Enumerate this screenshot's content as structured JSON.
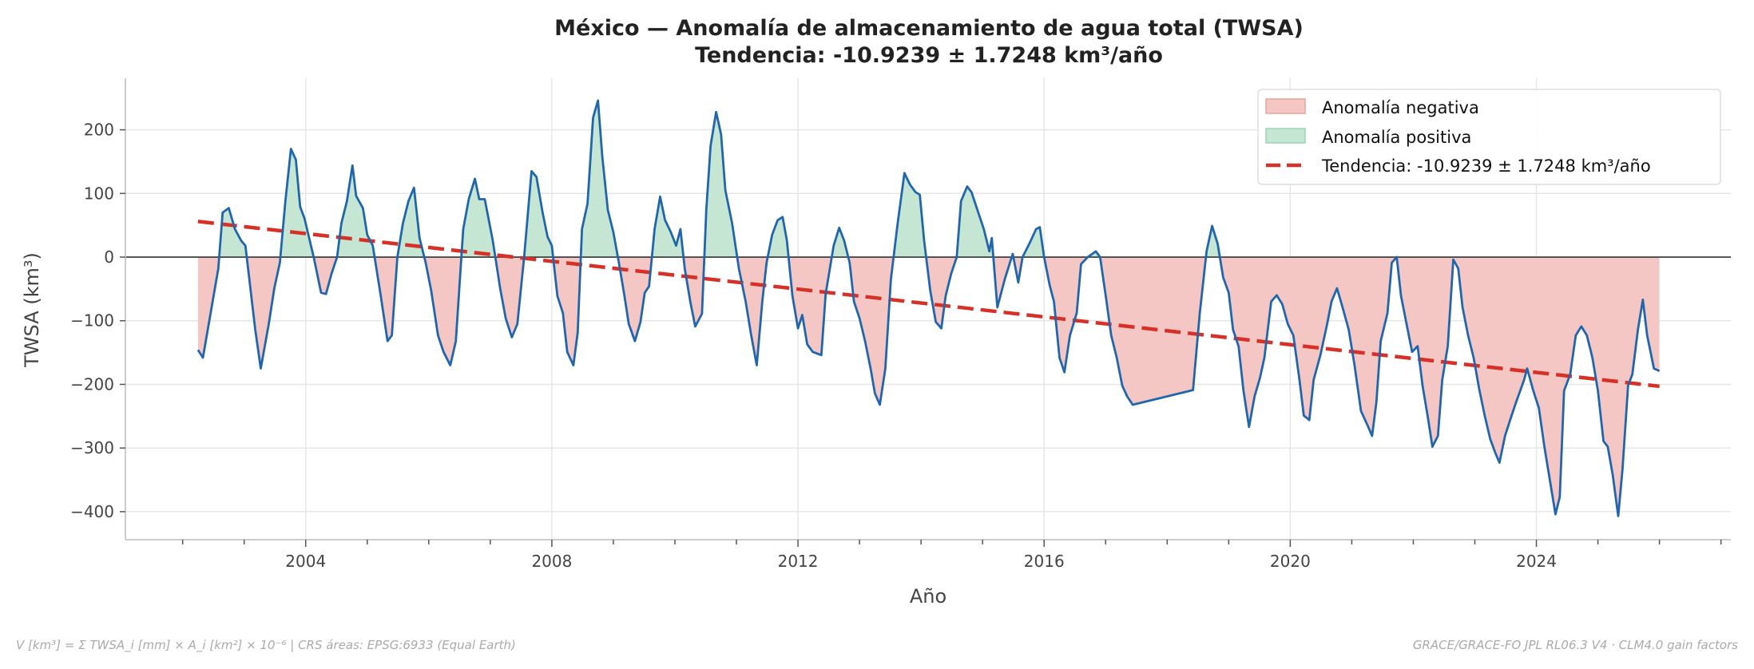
{
  "chart_data": {
    "type": "line",
    "title": "México — Anomalía de almacenamiento de agua total (TWSA)",
    "subtitle": "Tendencia: -10.9239 ± 1.7248 km³/año",
    "xlabel": "Año",
    "ylabel": "TWSA (km³)",
    "xlim": [
      2001.07,
      2027.16
    ],
    "ylim": [
      -444,
      281
    ],
    "x_ticks": [
      2004,
      2008,
      2012,
      2016,
      2020,
      2024
    ],
    "x_tick_labels": [
      "2004",
      "2008",
      "2012",
      "2016",
      "2020",
      "2024"
    ],
    "y_ticks": [
      200,
      100,
      0,
      -100,
      -200,
      -300,
      -400
    ],
    "y_tick_labels": [
      "200",
      "100",
      "0",
      "−100",
      "−200",
      "−300",
      "−400"
    ],
    "grid": true,
    "legend_placement": "upper-right",
    "legend": [
      {
        "label": "Anomalía negativa",
        "kind": "fill-negative"
      },
      {
        "label": "Anomalía positiva",
        "kind": "fill-positive"
      },
      {
        "label": "Tendencia: -10.9239 ± 1.7248 km³/año",
        "kind": "trend-line"
      }
    ],
    "colors": {
      "series": "#2166ac",
      "trend": "#d73027",
      "negative_fill": "#f4c6c4",
      "negative_edge": "#e8a3a0",
      "positive_fill": "#c5e6d2",
      "positive_edge": "#9fd3b5",
      "zero_line": "#333333",
      "grid": "#e6e6e6"
    },
    "trend": {
      "slope": -10.9239,
      "slope_err": 1.7248,
      "start": [
        2002.25,
        56
      ],
      "end": [
        2026.0,
        -203
      ]
    },
    "series": [
      {
        "x": [
          2002.25,
          2002.33,
          2002.58,
          2002.65,
          2002.75,
          2002.85,
          2002.95,
          2003.02,
          2003.18,
          2003.27,
          2003.4,
          2003.49,
          2003.58,
          2003.67,
          2003.76,
          2003.84,
          2003.91,
          2003.98,
          2004.13,
          2004.25,
          2004.33,
          2004.42,
          2004.51,
          2004.58,
          2004.67,
          2004.76,
          2004.82,
          2004.93,
          2005.0,
          2005.09,
          2005.22,
          2005.33,
          2005.4,
          2005.49,
          2005.58,
          2005.67,
          2005.76,
          2005.85,
          2005.95,
          2006.04,
          2006.15,
          2006.24,
          2006.35,
          2006.44,
          2006.56,
          2006.65,
          2006.75,
          2006.82,
          2006.91,
          2007.04,
          2007.16,
          2007.25,
          2007.35,
          2007.44,
          2007.55,
          2007.67,
          2007.75,
          2007.85,
          2007.93,
          2008.0,
          2008.09,
          2008.18,
          2008.25,
          2008.35,
          2008.42,
          2008.49,
          2008.58,
          2008.67,
          2008.75,
          2008.82,
          2008.91,
          2009.0,
          2009.09,
          2009.18,
          2009.25,
          2009.35,
          2009.44,
          2009.51,
          2009.58,
          2009.67,
          2009.76,
          2009.84,
          2009.93,
          2010.02,
          2010.09,
          2010.16,
          2010.25,
          2010.33,
          2010.44,
          2010.51,
          2010.58,
          2010.67,
          2010.75,
          2010.82,
          2010.93,
          2011.04,
          2011.15,
          2011.24,
          2011.33,
          2011.42,
          2011.49,
          2011.58,
          2011.67,
          2011.75,
          2011.82,
          2011.91,
          2012.0,
          2012.07,
          2012.15,
          2012.24,
          2012.38,
          2012.45,
          2012.58,
          2012.67,
          2012.75,
          2012.84,
          2012.91,
          2013.0,
          2013.09,
          2013.18,
          2013.25,
          2013.33,
          2013.42,
          2013.51,
          2013.62,
          2013.73,
          2013.82,
          2013.91,
          2013.98,
          2014.05,
          2014.15,
          2014.24,
          2014.33,
          2014.4,
          2014.49,
          2014.58,
          2014.65,
          2014.75,
          2014.82,
          2014.93,
          2015.02,
          2015.11,
          2015.15,
          2015.24,
          2015.36,
          2015.49,
          2015.58,
          2015.65,
          2015.76,
          2015.87,
          2015.93,
          2016.0,
          2016.09,
          2016.16,
          2016.25,
          2016.33,
          2016.42,
          2016.53,
          2016.6,
          2016.71,
          2016.84,
          2016.91,
          2017.0,
          2017.09,
          2017.18,
          2017.27,
          2017.35,
          2017.44,
          2018.42,
          2018.53,
          2018.64,
          2018.73,
          2018.82,
          2018.91,
          2019.0,
          2019.07,
          2019.16,
          2019.24,
          2019.33,
          2019.42,
          2019.51,
          2019.58,
          2019.69,
          2019.78,
          2019.87,
          2019.96,
          2020.05,
          2020.15,
          2020.22,
          2020.31,
          2020.38,
          2020.49,
          2020.6,
          2020.67,
          2020.76,
          2020.85,
          2020.95,
          2021.04,
          2021.15,
          2021.25,
          2021.33,
          2021.4,
          2021.47,
          2021.58,
          2021.65,
          2021.73,
          2021.8,
          2021.89,
          2021.98,
          2022.07,
          2022.15,
          2022.24,
          2022.31,
          2022.4,
          2022.47,
          2022.56,
          2022.65,
          2022.73,
          2022.8,
          2022.89,
          2022.98,
          2023.07,
          2023.16,
          2023.25,
          2023.33,
          2023.4,
          2023.49,
          2023.58,
          2023.67,
          2023.8,
          2023.85,
          2023.95,
          2024.04,
          2024.13,
          2024.22,
          2024.31,
          2024.38,
          2024.45,
          2024.55,
          2024.64,
          2024.73,
          2024.82,
          2024.91,
          2025.0,
          2025.09,
          2025.16,
          2025.24,
          2025.33,
          2025.4,
          2025.49,
          2025.56,
          2025.65,
          2025.73,
          2025.8,
          2025.91,
          2026.0
        ],
        "y": [
          -146,
          -158,
          -18,
          70,
          77,
          44,
          26,
          18,
          -114,
          -175,
          -105,
          -49,
          -9,
          88,
          170,
          153,
          79,
          61,
          0,
          -56,
          -58,
          -26,
          0,
          53,
          88,
          144,
          96,
          77,
          35,
          18,
          -61,
          -132,
          -123,
          0,
          53,
          88,
          109,
          30,
          -9,
          -53,
          -123,
          -149,
          -170,
          -132,
          44,
          91,
          123,
          91,
          91,
          26,
          -49,
          -96,
          -126,
          -105,
          0,
          135,
          126,
          70,
          32,
          18,
          -61,
          -88,
          -149,
          -170,
          -119,
          44,
          84,
          219,
          246,
          158,
          74,
          39,
          -9,
          -61,
          -105,
          -132,
          -102,
          -56,
          -46,
          44,
          95,
          58,
          40,
          18,
          44,
          -18,
          -70,
          -109,
          -89,
          74,
          175,
          228,
          193,
          105,
          53,
          -18,
          -70,
          -123,
          -170,
          -70,
          -9,
          35,
          58,
          63,
          26,
          -61,
          -112,
          -91,
          -137,
          -149,
          -154,
          -58,
          18,
          46,
          26,
          -9,
          -70,
          -96,
          -132,
          -175,
          -214,
          -232,
          -175,
          -35,
          53,
          132,
          114,
          102,
          98,
          26,
          -53,
          -102,
          -112,
          -61,
          -26,
          0,
          88,
          111,
          102,
          70,
          44,
          9,
          30,
          -79,
          -35,
          5,
          -40,
          0,
          21,
          44,
          47,
          0,
          -44,
          -70,
          -158,
          -181,
          -123,
          -88,
          -11,
          0,
          9,
          0,
          -60,
          -123,
          -158,
          -202,
          -219,
          -232,
          -209,
          -88,
          9,
          49,
          21,
          -32,
          -56,
          -114,
          -140,
          -210,
          -267,
          -219,
          -189,
          -158,
          -70,
          -60,
          -74,
          -105,
          -123,
          -193,
          -249,
          -256,
          -193,
          -154,
          -105,
          -70,
          -49,
          -79,
          -114,
          -167,
          -242,
          -263,
          -281,
          -228,
          -132,
          -88,
          -9,
          0,
          -61,
          -105,
          -149,
          -140,
          -202,
          -254,
          -298,
          -281,
          -193,
          -140,
          -4,
          -18,
          -79,
          -123,
          -158,
          -207,
          -249,
          -286,
          -307,
          -323,
          -281,
          -254,
          -228,
          -193,
          -175,
          -210,
          -237,
          -298,
          -351,
          -404,
          -377,
          -210,
          -184,
          -123,
          -109,
          -123,
          -158,
          -210,
          -289,
          -298,
          -342,
          -407,
          -333,
          -202,
          -184,
          -114,
          -67,
          -123,
          -175,
          -179
        ]
      }
    ]
  },
  "footer": {
    "left": "V [km³] = Σ TWSA_i [mm] × A_i [km²] × 10⁻⁶  |  CRS áreas: EPSG:6933 (Equal Earth)",
    "right": "GRACE/GRACE-FO JPL RL06.3 V4 · CLM4.0 gain factors"
  }
}
